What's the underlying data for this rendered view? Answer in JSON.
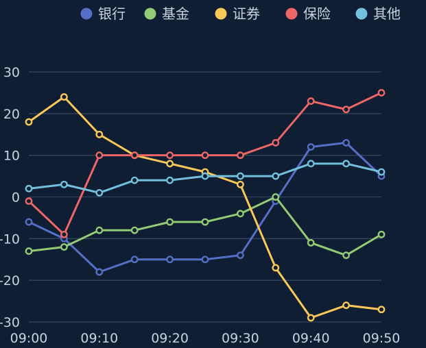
{
  "chart_data": {
    "type": "line",
    "x": [
      "09:00",
      "09:05",
      "09:10",
      "09:15",
      "09:20",
      "09:25",
      "09:30",
      "09:35",
      "09:40",
      "09:45",
      "09:50"
    ],
    "x_tick_labels": [
      "09:00",
      "09:10",
      "09:20",
      "09:30",
      "09:40",
      "09:50"
    ],
    "ylim": [
      -30,
      30
    ],
    "y_ticks": [
      -30,
      -20,
      -10,
      0,
      10,
      20,
      30
    ],
    "grid": true,
    "legend_position": "top-right",
    "series": [
      {
        "name": "银行",
        "color": "#5470c6",
        "values": [
          -6,
          -10,
          -18,
          -15,
          -15,
          -15,
          -14,
          -1,
          12,
          13,
          5
        ]
      },
      {
        "name": "基金",
        "color": "#91cc75",
        "values": [
          -13,
          -12,
          -8,
          -8,
          -6,
          -6,
          -4,
          0,
          -11,
          -14,
          -9
        ]
      },
      {
        "name": "证券",
        "color": "#fac858",
        "values": [
          18,
          24,
          15,
          10,
          8,
          6,
          3,
          -17,
          -29,
          -26,
          -27
        ]
      },
      {
        "name": "保险",
        "color": "#ee6666",
        "values": [
          -1,
          -9,
          10,
          10,
          10,
          10,
          10,
          13,
          23,
          21,
          25
        ]
      },
      {
        "name": "其他",
        "color": "#73c0de",
        "values": [
          2,
          3,
          1,
          4,
          4,
          5,
          5,
          5,
          8,
          8,
          6
        ]
      }
    ]
  },
  "colors": {
    "background": "#0f1e33",
    "grid": "#34445c",
    "text": "#c9d3e0"
  }
}
